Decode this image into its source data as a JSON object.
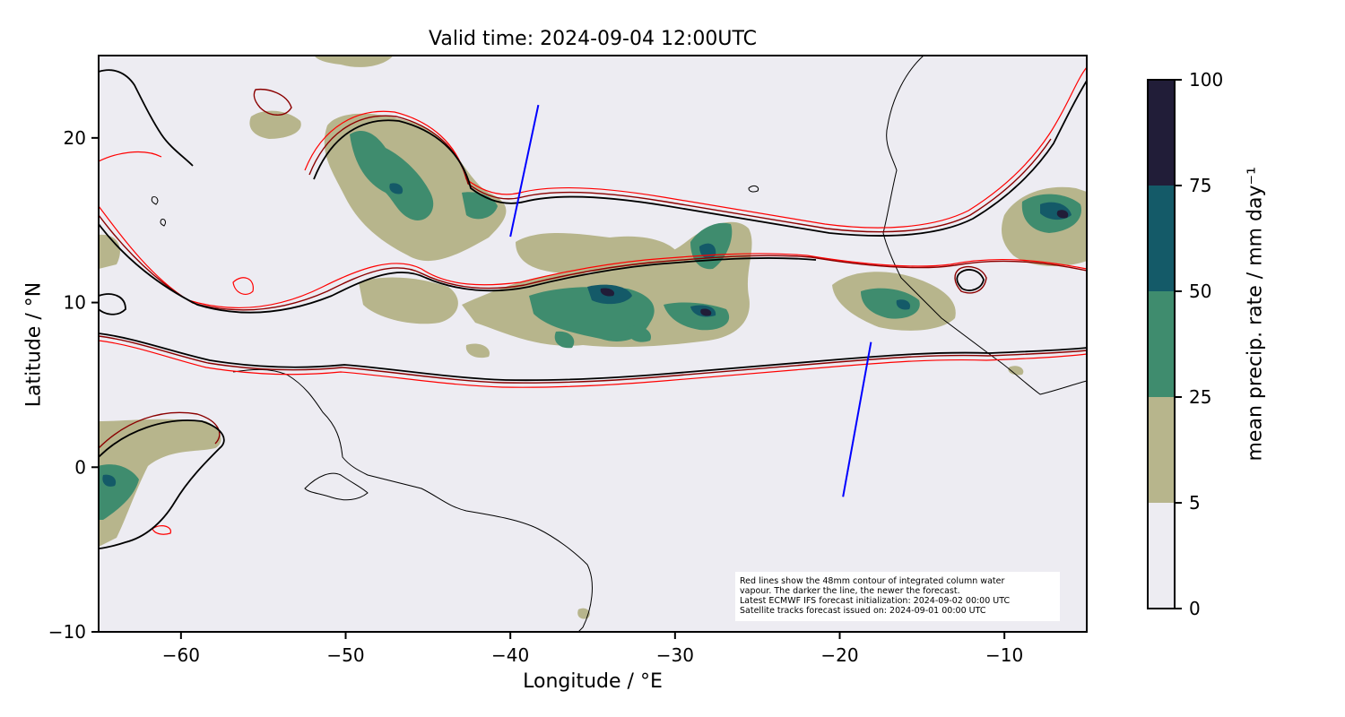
{
  "title": "Valid time: 2024-09-04 12:00UTC",
  "xlabel": "Longitude / °E",
  "ylabel": "Latitude / °N",
  "x_ticks": [
    -60,
    -50,
    -40,
    -30,
    -20,
    -10
  ],
  "x_tick_labels": [
    "−60",
    "−50",
    "−40",
    "−30",
    "−20",
    "−10"
  ],
  "y_ticks": [
    20,
    10,
    0,
    -10
  ],
  "y_tick_labels": [
    "20",
    "10",
    "0",
    "−10"
  ],
  "colorbar": {
    "label": "mean precip. rate / mm day⁻¹",
    "levels": [
      0,
      5,
      25,
      50,
      75,
      100
    ],
    "level_labels": [
      "0",
      "5",
      "25",
      "50",
      "75",
      "100"
    ],
    "colors": [
      "#edecf2",
      "#b7b58c",
      "#3f8c6e",
      "#145a68",
      "#211d38"
    ]
  },
  "notes": [
    "Red lines show the 48mm contour of integrated column water",
    "vapour. The darker the line, the newer the forecast.",
    "Latest ECMWF IFS forecast initialization: 2024-09-02 00:00 UTC",
    "Satellite tracks forecast issued on: 2024-09-01 00:00 UTC"
  ],
  "colors": {
    "background": "#edecf2",
    "contour_oldest": "#ff0000",
    "contour_newer": "#8b0000",
    "contour_newest": "#000000",
    "satellite_track": "#0000ff",
    "coastline": "#000000"
  },
  "map_extent": {
    "lon": [
      -65,
      -5
    ],
    "lat": [
      -10,
      25
    ]
  },
  "satellite_tracks": [
    {
      "lon": [
        -40.0,
        -38.3
      ],
      "lat": [
        14.0,
        22.0
      ]
    },
    {
      "lon": [
        -19.8,
        -18.1
      ],
      "lat": [
        -1.8,
        7.6
      ]
    }
  ]
}
